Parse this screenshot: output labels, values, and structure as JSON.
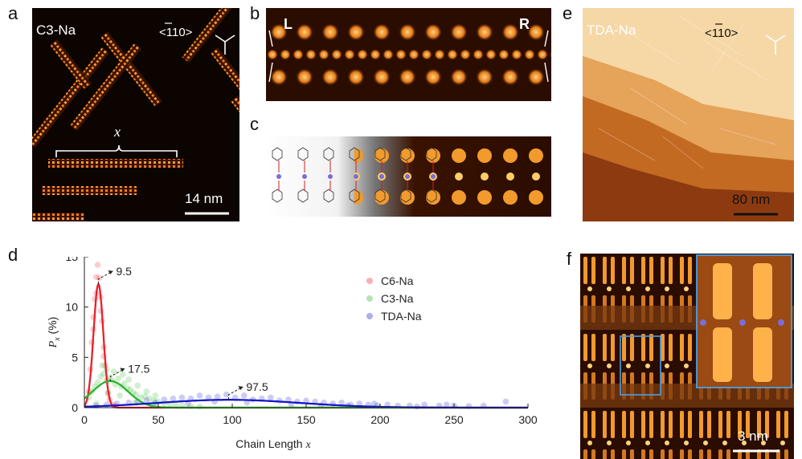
{
  "panels": {
    "a": {
      "letter": "a",
      "label": "C3-Na",
      "direction": "<110>",
      "bracket_label": "x",
      "scale": "14 nm"
    },
    "b": {
      "letter": "b",
      "left_tag": "L",
      "right_tag": "R"
    },
    "c": {
      "letter": "c"
    },
    "d": {
      "letter": "d"
    },
    "e": {
      "letter": "e",
      "label": "TDA-Na",
      "direction": "<110>",
      "scale": "80 nm"
    },
    "f": {
      "letter": "f",
      "scale": "3 nm"
    }
  },
  "colors": {
    "c6": "#e8202a",
    "c3": "#2bb52b",
    "tda": "#1717c8",
    "stm_dark": "#1a0a00",
    "stm_bright": "#ffcc66"
  },
  "chart_data": {
    "type": "scatter",
    "xlabel": "Chain Length",
    "xlabel_var": "x",
    "ylabel_var": "P",
    "ylabel_sub": "x",
    "ylabel_unit": "(%)",
    "xlim": [
      0,
      300
    ],
    "ylim": [
      0,
      15
    ],
    "xticks": [
      "0",
      "50",
      "100",
      "150",
      "200",
      "250",
      "300"
    ],
    "yticks": [
      "0",
      "5",
      "10",
      "15"
    ],
    "legend_position": "top-right",
    "annotations": [
      {
        "text": "9.5",
        "x": 9.5,
        "y": 12.3
      },
      {
        "text": "17.5",
        "x": 17.5,
        "y": 2.6
      },
      {
        "text": "97.5",
        "x": 97.5,
        "y": 0.8
      }
    ],
    "series": [
      {
        "name": "C6-Na",
        "peak": 9.5,
        "amp": 12.3,
        "sigma": 3.3,
        "points": [
          [
            3,
            1.6
          ],
          [
            4,
            3.8
          ],
          [
            5,
            6.5
          ],
          [
            6,
            9.0
          ],
          [
            7,
            10.8
          ],
          [
            8,
            13.0
          ],
          [
            9,
            14.2
          ],
          [
            10,
            12.9
          ],
          [
            11,
            11.0
          ],
          [
            12,
            8.6
          ],
          [
            13,
            6.0
          ],
          [
            14,
            4.2
          ],
          [
            15,
            2.7
          ],
          [
            16,
            1.4
          ],
          [
            17,
            0.8
          ],
          [
            19,
            0.3
          ],
          [
            21,
            0.2
          ],
          [
            6,
            7.8
          ],
          [
            8,
            11.4
          ],
          [
            11,
            9.6
          ],
          [
            13,
            5.1
          ]
        ]
      },
      {
        "name": "C3-Na",
        "peak": 17.5,
        "amp": 2.65,
        "sigma": 12,
        "points": [
          [
            3,
            1.0
          ],
          [
            5,
            1.6
          ],
          [
            7,
            2.1
          ],
          [
            9,
            2.5
          ],
          [
            11,
            3.1
          ],
          [
            13,
            3.4
          ],
          [
            15,
            3.8
          ],
          [
            17,
            3.0
          ],
          [
            19,
            2.7
          ],
          [
            21,
            2.3
          ],
          [
            23,
            2.9
          ],
          [
            25,
            2.1
          ],
          [
            27,
            2.4
          ],
          [
            29,
            1.9
          ],
          [
            31,
            1.8
          ],
          [
            33,
            1.5
          ],
          [
            35,
            1.3
          ],
          [
            38,
            1.0
          ],
          [
            41,
            1.1
          ],
          [
            44,
            0.9
          ],
          [
            47,
            0.7
          ],
          [
            50,
            0.6
          ],
          [
            54,
            0.4
          ],
          [
            58,
            0.35
          ],
          [
            62,
            0.3
          ],
          [
            66,
            0.2
          ],
          [
            72,
            0.15
          ],
          [
            78,
            0.1
          ],
          [
            12,
            4.2
          ],
          [
            20,
            3.6
          ],
          [
            26,
            3.3
          ],
          [
            30,
            2.8
          ],
          [
            36,
            2.2
          ],
          [
            42,
            1.6
          ],
          [
            48,
            1.2
          ],
          [
            8,
            0.4
          ],
          [
            16,
            1.5
          ],
          [
            24,
            1.2
          ],
          [
            34,
            0.5
          ],
          [
            46,
            0.3
          ]
        ]
      },
      {
        "name": "TDA-Na",
        "peak": 97.5,
        "amp": 0.78,
        "sigma": 48,
        "points": [
          [
            8,
            0.2
          ],
          [
            15,
            0.3
          ],
          [
            22,
            0.4
          ],
          [
            30,
            0.5
          ],
          [
            36,
            0.6
          ],
          [
            42,
            0.7
          ],
          [
            48,
            0.5
          ],
          [
            54,
            0.8
          ],
          [
            60,
            0.9
          ],
          [
            66,
            1.0
          ],
          [
            72,
            0.9
          ],
          [
            78,
            1.2
          ],
          [
            84,
            1.0
          ],
          [
            90,
            1.1
          ],
          [
            96,
            1.3
          ],
          [
            102,
            1.0
          ],
          [
            108,
            1.2
          ],
          [
            114,
            0.8
          ],
          [
            120,
            0.9
          ],
          [
            126,
            1.0
          ],
          [
            132,
            0.7
          ],
          [
            138,
            0.8
          ],
          [
            144,
            0.6
          ],
          [
            150,
            0.7
          ],
          [
            156,
            0.6
          ],
          [
            162,
            0.5
          ],
          [
            168,
            0.4
          ],
          [
            174,
            0.5
          ],
          [
            180,
            0.3
          ],
          [
            186,
            0.4
          ],
          [
            192,
            0.3
          ],
          [
            198,
            0.2
          ],
          [
            205,
            0.3
          ],
          [
            212,
            0.2
          ],
          [
            220,
            0.2
          ],
          [
            230,
            0.3
          ],
          [
            240,
            0.2
          ],
          [
            250,
            0.2
          ],
          [
            260,
            0.15
          ],
          [
            270,
            0.2
          ],
          [
            285,
            0.6
          ],
          [
            70,
            0.4
          ],
          [
            88,
            0.6
          ],
          [
            110,
            0.5
          ],
          [
            140,
            0.3
          ],
          [
            160,
            0.2
          ],
          [
            178,
            0.2
          ],
          [
            196,
            0.4
          ],
          [
            225,
            0.1
          ],
          [
            245,
            0.3
          ]
        ]
      }
    ]
  }
}
